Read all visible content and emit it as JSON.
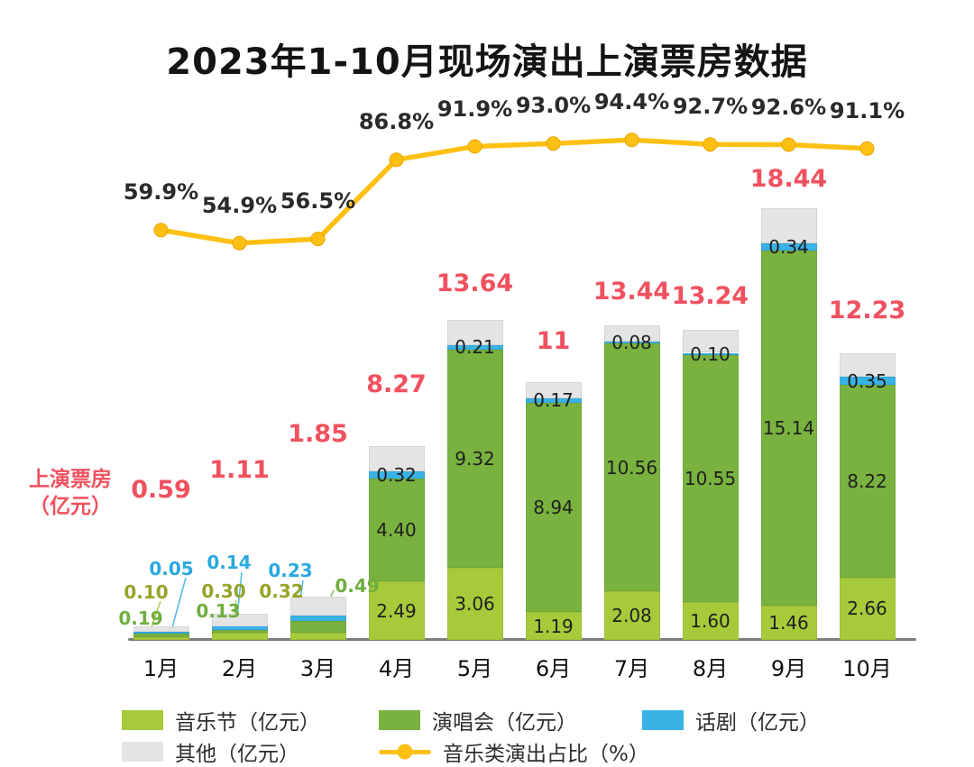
{
  "title": "2023年1-10月现场演出上演票房数据",
  "y_axis_label": {
    "line1": "上演票房",
    "line2": "（亿元）"
  },
  "chart_data": {
    "type": "bar",
    "subtype": "stacked-bar-with-line",
    "categories": [
      "1月",
      "2月",
      "3月",
      "4月",
      "5月",
      "6月",
      "7月",
      "8月",
      "9月",
      "10月"
    ],
    "unit": "亿元",
    "stack_order_bottom_to_top": [
      "音乐节",
      "演唱会",
      "话剧",
      "其他"
    ],
    "series": [
      {
        "key": "festival",
        "name": "音乐节（亿元）",
        "color": "#a7ca3b",
        "values": [
          0.1,
          0.3,
          0.32,
          2.49,
          3.06,
          1.19,
          2.08,
          1.6,
          1.46,
          2.66
        ],
        "labels": [
          "0.10",
          "0.30",
          "0.32",
          "2.49",
          "3.06",
          "1.19",
          "2.08",
          "1.60",
          "1.46",
          "2.66"
        ],
        "label_color": "#96a32a"
      },
      {
        "key": "concert",
        "name": "演唱会（亿元）",
        "color": "#79b23f",
        "values": [
          0.19,
          0.13,
          0.49,
          4.4,
          9.32,
          8.94,
          10.56,
          10.55,
          15.14,
          8.22
        ],
        "labels": [
          "0.19",
          "0.13",
          "0.49",
          "4.40",
          "9.32",
          "8.94",
          "10.56",
          "10.55",
          "15.14",
          "8.22"
        ],
        "label_color": "#6fae3e"
      },
      {
        "key": "drama",
        "name": "话剧（亿元）",
        "color": "#39b3e6",
        "values": [
          0.05,
          0.14,
          0.23,
          0.32,
          0.21,
          0.17,
          0.08,
          0.1,
          0.34,
          0.35
        ],
        "labels": [
          "0.05",
          "0.14",
          "0.23",
          "0.32",
          "0.21",
          "0.17",
          "0.08",
          "0.10",
          "0.34",
          "0.35"
        ],
        "label_color": "#2aa9de"
      },
      {
        "key": "other",
        "name": "其他（亿元）",
        "color": "#e4e4e4",
        "values": [
          0.25,
          0.54,
          0.81,
          1.06,
          1.05,
          0.7,
          0.72,
          0.99,
          1.5,
          1.0
        ],
        "labels": [],
        "estimated": true
      }
    ],
    "totals": [
      "0.59",
      "1.11",
      "1.85",
      "8.27",
      "13.64",
      "11",
      "13.44",
      "13.24",
      "18.44",
      "12.23"
    ],
    "totals_color": "#f0515f",
    "line": {
      "key": "music_share",
      "name": "音乐类演出占比（%）",
      "color": "#fdc013",
      "values": [
        59.9,
        54.9,
        56.5,
        86.8,
        91.9,
        93.0,
        94.4,
        92.7,
        92.6,
        91.1
      ],
      "labels": [
        "59.9%",
        "54.9%",
        "56.5%",
        "86.8%",
        "91.9%",
        "93.0%",
        "94.4%",
        "92.7%",
        "92.6%",
        "91.1%"
      ]
    }
  },
  "legend": {
    "row1": [
      {
        "key": "festival",
        "label": "音乐节（亿元）"
      },
      {
        "key": "concert",
        "label": "演唱会（亿元）"
      },
      {
        "key": "drama",
        "label": "话剧（亿元）"
      }
    ],
    "row2": [
      {
        "key": "other",
        "label": "其他（亿元）"
      },
      {
        "key": "line",
        "label": "音乐类演出占比（%）"
      }
    ]
  }
}
